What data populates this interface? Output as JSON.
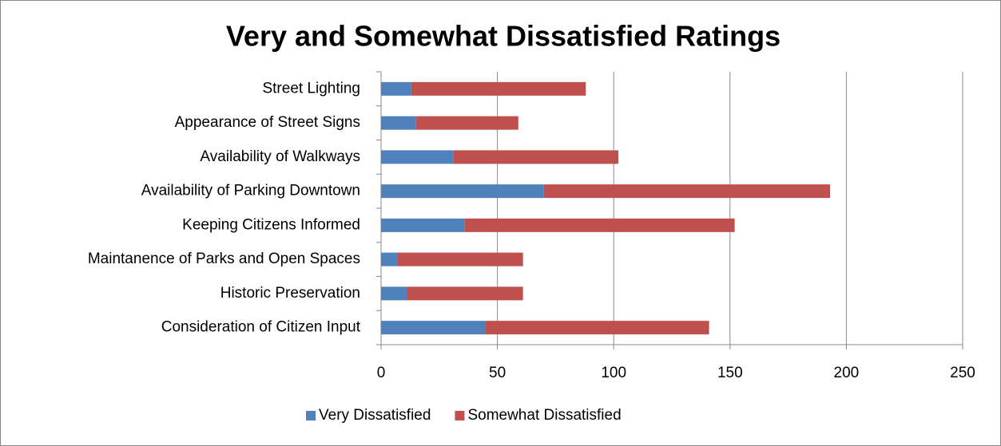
{
  "chart_data": {
    "type": "stacked_barh",
    "title": "Very and Somewhat Dissatisfied Ratings",
    "categories": [
      "Street Lighting",
      "Appearance of Street Signs",
      "Availability of Walkways",
      "Availability of Parking Downtown",
      "Keeping Citizens Informed",
      "Maintanence of Parks and Open Spaces",
      "Historic Preservation",
      "Consideration of Citizen Input"
    ],
    "series": [
      {
        "name": "Very Dissatisfied",
        "color": "#4f81bd",
        "values": [
          13,
          15,
          31,
          70,
          36,
          7,
          11,
          45
        ]
      },
      {
        "name": "Somewhat Dissatisfied",
        "color": "#c0504d",
        "values": [
          75,
          44,
          71,
          123,
          116,
          54,
          50,
          96
        ]
      }
    ],
    "xlim": [
      0,
      250
    ],
    "xticks": [
      0,
      50,
      100,
      150,
      200,
      250
    ],
    "grid": true,
    "legend": "bottom"
  }
}
